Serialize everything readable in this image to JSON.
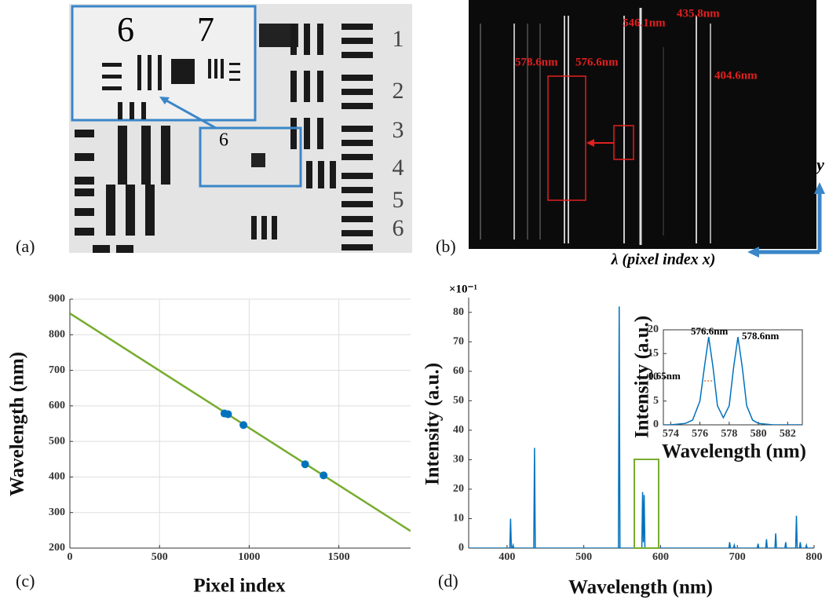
{
  "panel_a": {
    "label": "(a)",
    "inset_digits": [
      "6",
      "7"
    ],
    "box_digit": "6",
    "column_digits": [
      "1",
      "2",
      "3",
      "4",
      "5",
      "6"
    ]
  },
  "panel_b": {
    "label": "(b)",
    "annotations": [
      "578.6nm",
      "576.6nm",
      "546.1nm",
      "435.8nm",
      "404.6nm"
    ],
    "x_axis": "λ (pixel index x)",
    "y_axis": "y"
  },
  "chart_data": [
    {
      "type": "line",
      "panel_label": "(c)",
      "x_label": "Pixel index",
      "y_label": "Wavelength (nm)",
      "xlim": [
        0,
        1900
      ],
      "ylim": [
        200,
        900
      ],
      "xticks": [
        0,
        500,
        1000,
        1500
      ],
      "yticks": [
        200,
        300,
        400,
        500,
        600,
        700,
        800,
        900
      ],
      "grid": true,
      "series": [
        {
          "mode": "line",
          "color": "#77ac30",
          "x": [
            0,
            1900
          ],
          "values": [
            860,
            248
          ]
        },
        {
          "mode": "markers",
          "color": "#0072bd",
          "x": [
            862,
            882,
            968,
            1312,
            1415
          ],
          "values": [
            578.6,
            576.6,
            546.1,
            435.8,
            404.6
          ]
        }
      ]
    },
    {
      "type": "line",
      "panel_label": "(d)",
      "x_label": "Wavelength (nm)",
      "y_label": "Intensity (a.u.)",
      "scale_label": "×10⁻¹",
      "xlim": [
        350,
        800
      ],
      "ylim": [
        0,
        85
      ],
      "xticks": [
        400,
        500,
        600,
        700,
        800
      ],
      "yticks": [
        0,
        10,
        20,
        30,
        40,
        50,
        60,
        70,
        80
      ],
      "grid": false,
      "series": [
        {
          "mode": "line",
          "color": "#0072bd",
          "x": [
            350,
            403.6,
            404.6,
            405.6,
            406.8,
            407.8,
            408.8,
            434.8,
            435.8,
            436.8,
            545.1,
            546.1,
            547.1,
            575.6,
            576.6,
            577.6,
            578.6,
            579.6,
            689,
            690,
            691,
            695,
            696,
            697,
            726,
            727,
            728,
            737,
            738,
            739,
            749,
            750,
            751,
            762,
            763,
            764,
            776,
            777,
            778,
            781,
            782,
            783,
            789,
            790,
            791,
            800
          ],
          "values": [
            0,
            0,
            10,
            0,
            0,
            1,
            0,
            0,
            34,
            0,
            0,
            82,
            0,
            0,
            19,
            2,
            18,
            0,
            0,
            2,
            0,
            0,
            1,
            0,
            0,
            1.5,
            0,
            0,
            3,
            0,
            0,
            5,
            0,
            0,
            2,
            0,
            0,
            11,
            0,
            0,
            2,
            0,
            0,
            1,
            0,
            0
          ]
        }
      ]
    },
    {
      "type": "line",
      "x_label": "Wavelength (nm)",
      "y_label": "Intensity (a.u.)",
      "annotations": [
        "576.6nm",
        "578.6nm",
        "0.65nm"
      ],
      "xlim": [
        573.5,
        583
      ],
      "ylim": [
        0,
        20
      ],
      "xticks": [
        574,
        576,
        578,
        580,
        582
      ],
      "yticks": [
        0,
        5,
        10,
        15,
        20
      ],
      "grid": false,
      "series": [
        {
          "mode": "line",
          "color": "#0072bd",
          "x": [
            573.5,
            574,
            575,
            575.5,
            576,
            576.3,
            576.6,
            576.9,
            577.2,
            577.6,
            578,
            578.3,
            578.6,
            578.9,
            579.2,
            579.6,
            580,
            581,
            582,
            583
          ],
          "values": [
            0,
            0,
            0.3,
            1,
            5,
            12,
            18.5,
            12,
            4,
            1.5,
            4,
            12,
            18.5,
            12,
            4,
            1,
            0.3,
            0,
            0,
            0
          ]
        }
      ]
    }
  ]
}
